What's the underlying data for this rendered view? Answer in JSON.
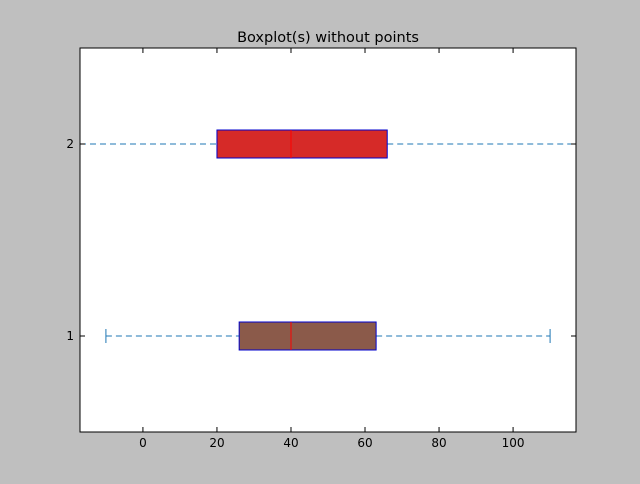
{
  "chart_data": {
    "type": "boxplot",
    "orientation": "horizontal",
    "title": "Boxplot(s) without points",
    "xlabel": "",
    "ylabel": "",
    "xlim": [
      -17,
      117
    ],
    "ylim": [
      0.5,
      2.5
    ],
    "x_ticks": [
      0,
      20,
      40,
      60,
      80,
      100
    ],
    "y_ticks": [
      1,
      2
    ],
    "grid": false,
    "legend": "none",
    "boxes": [
      {
        "position": 1,
        "whisker_low": -10,
        "q1": 26,
        "median": 40,
        "q3": 63,
        "whisker_high": 110,
        "whisker_caps": true,
        "fill": "#8b5a4a"
      },
      {
        "position": 2,
        "whisker_low": -17,
        "q1": 20,
        "median": 40,
        "q3": 66,
        "whisker_high": 117,
        "whisker_caps": false,
        "fill": "#d62a28"
      }
    ],
    "colors": {
      "box_edge": "#0000cc",
      "median_line": "#ff0000",
      "whisker": "#1f77b4",
      "axes_background": "#ffffff",
      "figure_background": "#bfbfbf"
    }
  }
}
